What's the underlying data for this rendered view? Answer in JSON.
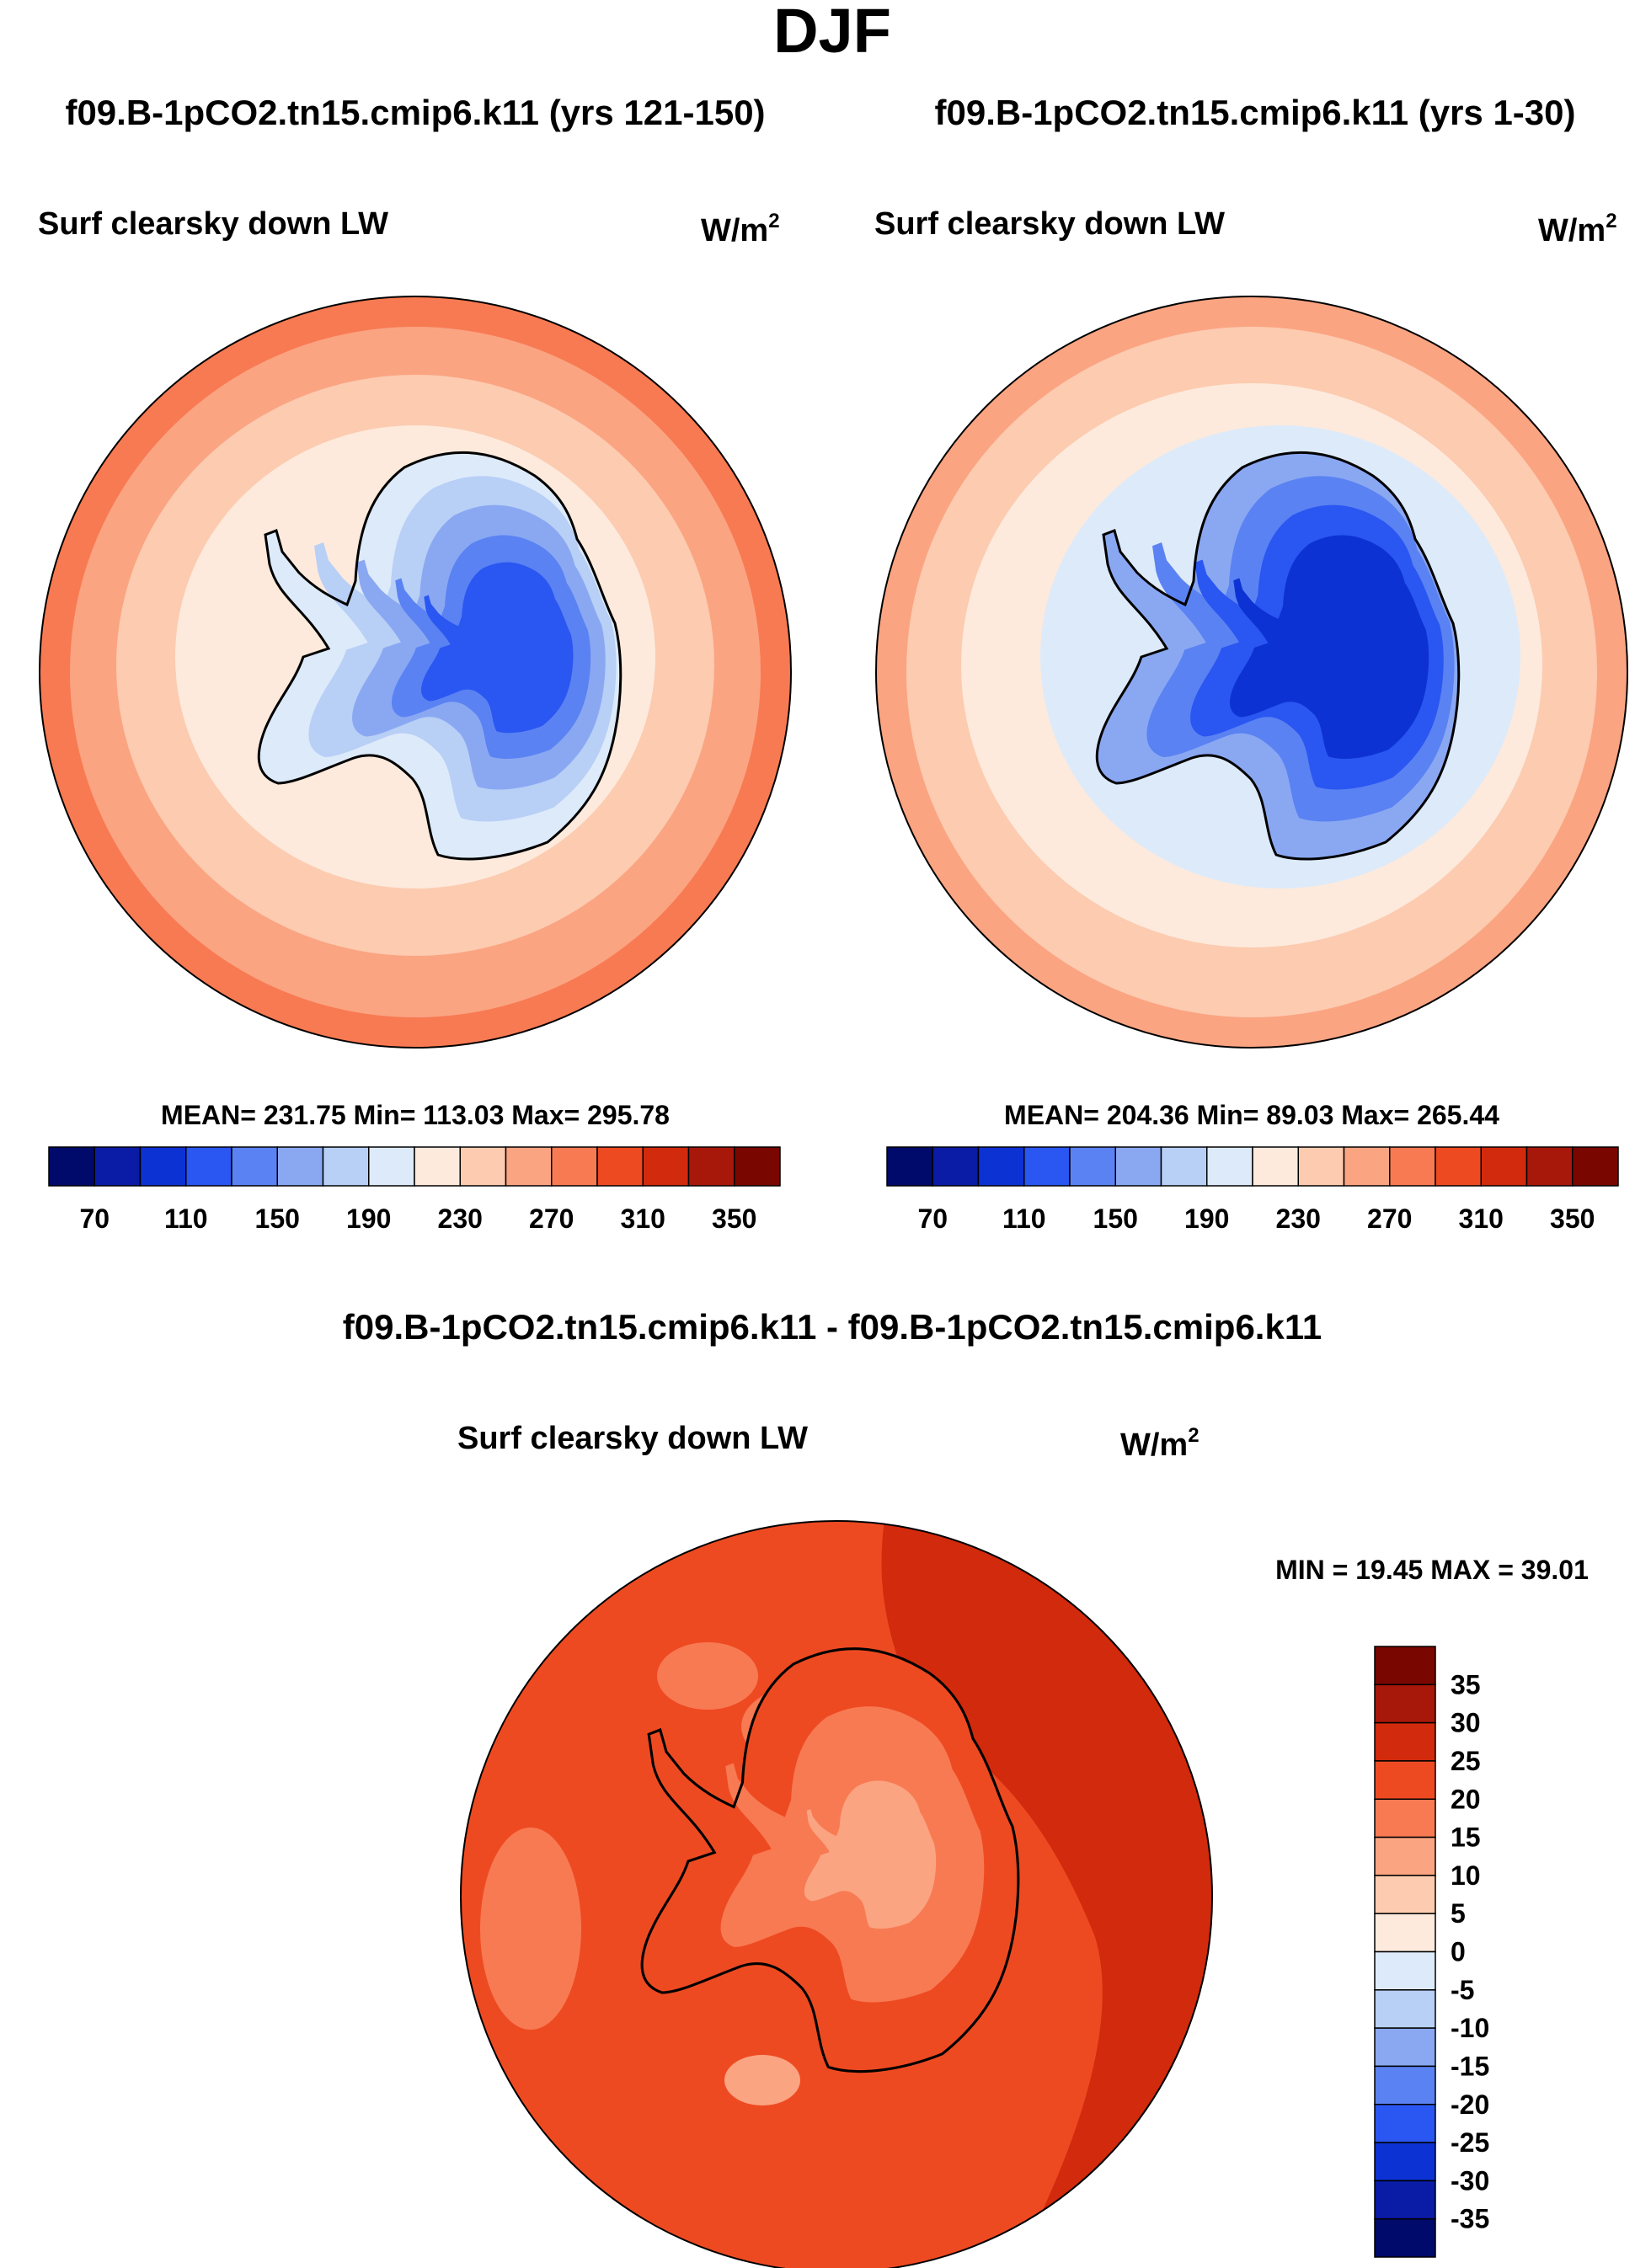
{
  "page": {
    "season_title": "DJF"
  },
  "palettes": {
    "abs": [
      "#000a6b",
      "#0a1ba6",
      "#0d32d4",
      "#2a56f2",
      "#5a82f2",
      "#8aa8f2",
      "#b8cff6",
      "#ddeafa",
      "#fdeadc",
      "#fccbb0",
      "#fba482",
      "#f87a52",
      "#ee4a22",
      "#d22a0c",
      "#a8180a",
      "#7a0600"
    ],
    "diff": [
      "#000a6b",
      "#0a1ba6",
      "#0d32d4",
      "#2a56f2",
      "#5a82f2",
      "#8aa8f2",
      "#b8cff6",
      "#ddeafa",
      "#fdeadc",
      "#fccbb0",
      "#fba482",
      "#f87a52",
      "#ee4a22",
      "#d22a0c",
      "#a8180a",
      "#7a0600"
    ]
  },
  "panels": [
    {
      "title": "f09.B-1pCO2.tn15.cmip6.k11 (yrs 121-150)",
      "variable": "Surf clearsky down LW",
      "units_base": "W/m",
      "units_exp": "2",
      "stats": "MEAN= 231.75  Min= 113.03  Max= 295.78",
      "colorbar_labels": [
        "70",
        "110",
        "150",
        "190",
        "230",
        "270",
        "310",
        "350"
      ]
    },
    {
      "title": "f09.B-1pCO2.tn15.cmip6.k11 (yrs 1-30)",
      "variable": "Surf clearsky down LW",
      "units_base": "W/m",
      "units_exp": "2",
      "stats": "MEAN= 204.36  Min=  89.03  Max= 265.44",
      "colorbar_labels": [
        "70",
        "110",
        "150",
        "190",
        "230",
        "270",
        "310",
        "350"
      ]
    },
    {
      "title": "f09.B-1pCO2.tn15.cmip6.k11 - f09.B-1pCO2.tn15.cmip6.k11",
      "variable": "Surf clearsky down LW",
      "units_base": "W/m",
      "units_exp": "2",
      "stats": "MIN =  19.45 MAX =  39.01",
      "colorbar_labels": [
        "35",
        "30",
        "25",
        "20",
        "15",
        "10",
        "5",
        "0",
        "-5",
        "-10",
        "-15",
        "-20",
        "-25",
        "-30",
        "-35"
      ]
    }
  ],
  "chart_data": [
    {
      "type": "heatmap",
      "projection": "south polar stereographic",
      "title": "f09.B-1pCO2.tn15.cmip6.k11 (yrs 121-150)",
      "variable": "Surf clearsky down LW",
      "units": "W/m2",
      "mean": 231.75,
      "min": 113.03,
      "max": 295.78,
      "levels": [
        70,
        90,
        110,
        130,
        150,
        170,
        190,
        210,
        230,
        250,
        270,
        290,
        310,
        330,
        350
      ]
    },
    {
      "type": "heatmap",
      "projection": "south polar stereographic",
      "title": "f09.B-1pCO2.tn15.cmip6.k11 (yrs 1-30)",
      "variable": "Surf clearsky down LW",
      "units": "W/m2",
      "mean": 204.36,
      "min": 89.03,
      "max": 265.44,
      "levels": [
        70,
        90,
        110,
        130,
        150,
        170,
        190,
        210,
        230,
        250,
        270,
        290,
        310,
        330,
        350
      ]
    },
    {
      "type": "heatmap",
      "projection": "south polar stereographic",
      "title": "f09.B-1pCO2.tn15.cmip6.k11 - f09.B-1pCO2.tn15.cmip6.k11",
      "variable": "Surf clearsky down LW",
      "units": "W/m2",
      "min": 19.45,
      "max": 39.01,
      "levels": [
        -35,
        -30,
        -25,
        -20,
        -15,
        -10,
        -5,
        0,
        5,
        10,
        15,
        20,
        25,
        30,
        35
      ]
    }
  ]
}
